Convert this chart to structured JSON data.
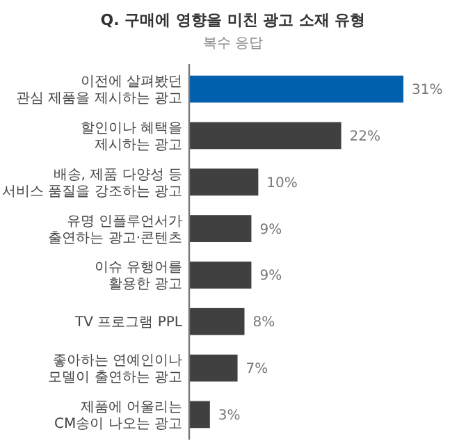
{
  "chart_data": {
    "type": "bar",
    "orientation": "horizontal",
    "title": "Q. 구매에 영향을 미친 광고 소재 유형",
    "subtitle": "복수 응답",
    "categories": [
      "이전에 살펴봤던\n관심 제품을 제시하는 광고",
      "할인이나 혜택을\n제시하는 광고",
      "배송, 제품 다양성 등\n서비스 품질을 강조하는 광고",
      "유명 인플루언서가\n출연하는 광고·콘텐츠",
      "이슈 유행어를\n활용한 광고",
      "TV 프로그램 PPL",
      "좋아하는 연예인이나\n모델이 출연하는 광고",
      "제품에 어울리는\nCM송이 나오는 광고"
    ],
    "values": [
      31,
      22,
      10,
      9,
      9,
      8,
      7,
      3
    ],
    "value_labels": [
      "31%",
      "22%",
      "10%",
      "9%",
      "9%",
      "8%",
      "7%",
      "3%"
    ],
    "colors": [
      "#0060ad",
      "#404040",
      "#404040",
      "#404040",
      "#404040",
      "#404040",
      "#404040",
      "#404040"
    ]
  }
}
